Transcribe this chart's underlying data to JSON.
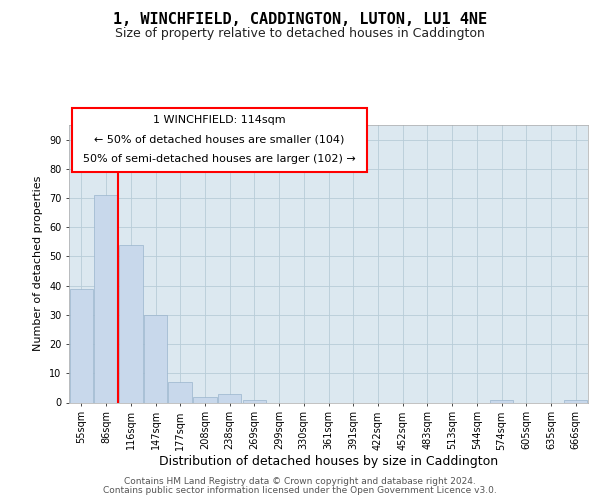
{
  "title": "1, WINCHFIELD, CADDINGTON, LUTON, LU1 4NE",
  "subtitle": "Size of property relative to detached houses in Caddington",
  "xlabel": "Distribution of detached houses by size in Caddington",
  "ylabel": "Number of detached properties",
  "categories": [
    "55sqm",
    "86sqm",
    "116sqm",
    "147sqm",
    "177sqm",
    "208sqm",
    "238sqm",
    "269sqm",
    "299sqm",
    "330sqm",
    "361sqm",
    "391sqm",
    "422sqm",
    "452sqm",
    "483sqm",
    "513sqm",
    "544sqm",
    "574sqm",
    "605sqm",
    "635sqm",
    "666sqm"
  ],
  "values": [
    39,
    71,
    54,
    30,
    7,
    2,
    3,
    1,
    0,
    0,
    0,
    0,
    0,
    0,
    0,
    0,
    0,
    1,
    0,
    0,
    1
  ],
  "bar_color": "#c8d8eb",
  "bar_edgecolor": "#9ab4cc",
  "red_line_index": 2,
  "ylim": [
    0,
    95
  ],
  "yticks": [
    0,
    10,
    20,
    30,
    40,
    50,
    60,
    70,
    80,
    90
  ],
  "annotation_title": "1 WINCHFIELD: 114sqm",
  "annotation_line1": "← 50% of detached houses are smaller (104)",
  "annotation_line2": "50% of semi-detached houses are larger (102) →",
  "footer1": "Contains HM Land Registry data © Crown copyright and database right 2024.",
  "footer2": "Contains public sector information licensed under the Open Government Licence v3.0.",
  "plot_bgcolor": "#dce8f0",
  "grid_color": "#b8ccd8",
  "title_fontsize": 11,
  "subtitle_fontsize": 9,
  "tick_fontsize": 7,
  "ylabel_fontsize": 8,
  "xlabel_fontsize": 9,
  "annotation_fontsize": 8,
  "footer_fontsize": 6.5
}
